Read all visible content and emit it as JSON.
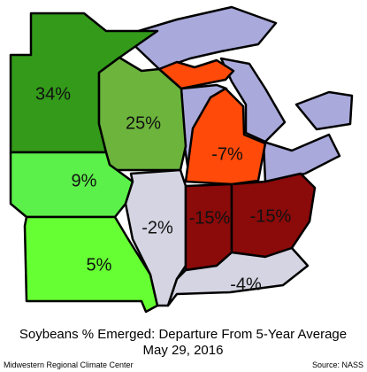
{
  "title": "Soybeans % Emerged: Departure From 5-Year Average",
  "subtitle": "May 29, 2016",
  "footer": {
    "left": "Midwestern Regional Climate Center",
    "right": "Source: NASS"
  },
  "lake_color": "#a9a9dc",
  "regions": [
    {
      "label": "34%",
      "color": "#339a1a"
    },
    {
      "label": "25%",
      "color": "#6cb43c"
    },
    {
      "label": "9%",
      "color": "#5cf04a"
    },
    {
      "label": "5%",
      "color": "#66ff33"
    },
    {
      "label": "-2%",
      "color": "#d4d4e2"
    },
    {
      "label": "-15%",
      "color": "#8b0a0a"
    },
    {
      "label": "-15%",
      "color": "#8b0a0a"
    },
    {
      "label": "-7%",
      "color": "#ff4a0a"
    },
    {
      "label": "-4%",
      "color": "#d4d4e2"
    }
  ]
}
